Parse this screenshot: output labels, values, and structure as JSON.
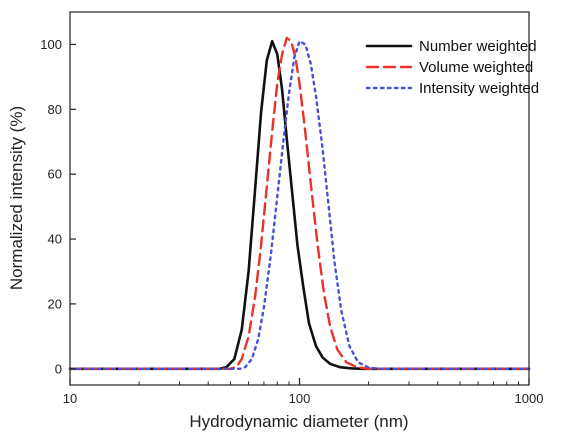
{
  "chart_data": {
    "type": "line",
    "title": "",
    "xlabel": "Hydrodynamic diameter (nm)",
    "ylabel": "Normalized intensity (%)",
    "xscale": "log",
    "xlim": [
      10,
      1000
    ],
    "ylim": [
      -5,
      110
    ],
    "grid": false,
    "legend_position": "top-right",
    "x_ticks": [
      10,
      100,
      1000
    ],
    "x_tick_labels": [
      "10",
      "100",
      "1000"
    ],
    "y_ticks": [
      0,
      20,
      40,
      60,
      80,
      100
    ],
    "y_tick_labels": [
      "0",
      "20",
      "40",
      "60",
      "80",
      "100"
    ],
    "series": [
      {
        "name": "Number weighted",
        "color": "#111111",
        "dash": "solid",
        "x": [
          10,
          45,
          48,
          52,
          56,
          60,
          64,
          68,
          72,
          76,
          80,
          84,
          88,
          93,
          98,
          104,
          110,
          118,
          126,
          136,
          150,
          170,
          190,
          1000
        ],
        "y": [
          0,
          0,
          0.5,
          3,
          12,
          30,
          55,
          79,
          95,
          101,
          97,
          86,
          71,
          54,
          38,
          25,
          14,
          7,
          3.5,
          1.5,
          0.5,
          0.1,
          0,
          0
        ]
      },
      {
        "name": "Volume weighted",
        "color": "#e8322a",
        "dash": "dashed",
        "x": [
          10,
          50,
          53,
          56,
          60,
          64,
          68,
          72,
          76,
          80,
          84,
          88,
          92,
          96,
          100,
          106,
          112,
          120,
          128,
          136,
          146,
          160,
          178,
          200,
          1000
        ],
        "y": [
          0,
          0,
          0.5,
          3,
          10,
          22,
          38,
          56,
          73,
          88,
          97,
          102,
          101,
          96,
          88,
          73,
          57,
          38,
          23,
          13,
          6,
          2,
          0.5,
          0,
          0
        ]
      },
      {
        "name": "Intensity weighted",
        "color": "#4a4fd6",
        "dash": "dotted",
        "x": [
          10,
          55,
          58,
          62,
          66,
          70,
          75,
          80,
          85,
          90,
          95,
          100,
          106,
          112,
          118,
          126,
          134,
          142,
          152,
          165,
          180,
          200,
          220,
          1000
        ],
        "y": [
          0,
          0,
          0.5,
          3,
          9,
          19,
          35,
          53,
          70,
          85,
          96,
          101,
          100,
          94,
          84,
          68,
          50,
          33,
          18,
          7,
          2,
          0.4,
          0,
          0
        ]
      }
    ]
  }
}
